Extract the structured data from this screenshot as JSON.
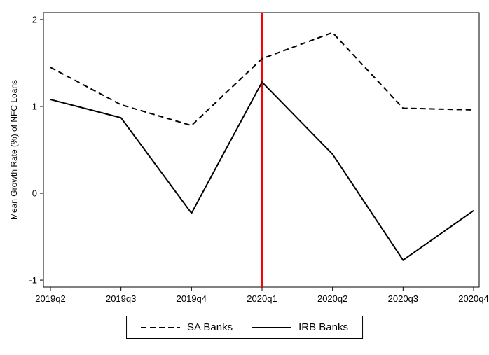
{
  "chart_data": {
    "type": "line",
    "title": "",
    "xlabel": "",
    "ylabel": "Mean Growth Rate (%) of NFC Loans",
    "categories": [
      "2019q2",
      "2019q3",
      "2019q4",
      "2020q1",
      "2020q2",
      "2020q3",
      "2020q4"
    ],
    "series": [
      {
        "name": "SA Banks",
        "style": "dashed",
        "color": "#000000",
        "values": [
          1.45,
          1.02,
          0.78,
          1.55,
          1.85,
          0.98,
          0.96
        ]
      },
      {
        "name": "IRB Banks",
        "style": "solid",
        "color": "#000000",
        "values": [
          1.08,
          0.87,
          -0.23,
          1.28,
          0.45,
          -0.77,
          -0.2
        ]
      }
    ],
    "ylim": [
      -1.08,
      2.08
    ],
    "yticks": [
      2,
      1,
      0,
      -1
    ],
    "vline": {
      "x": "2020q1",
      "color": "#ff0000"
    },
    "legend_position": "bottom",
    "grid": false
  }
}
